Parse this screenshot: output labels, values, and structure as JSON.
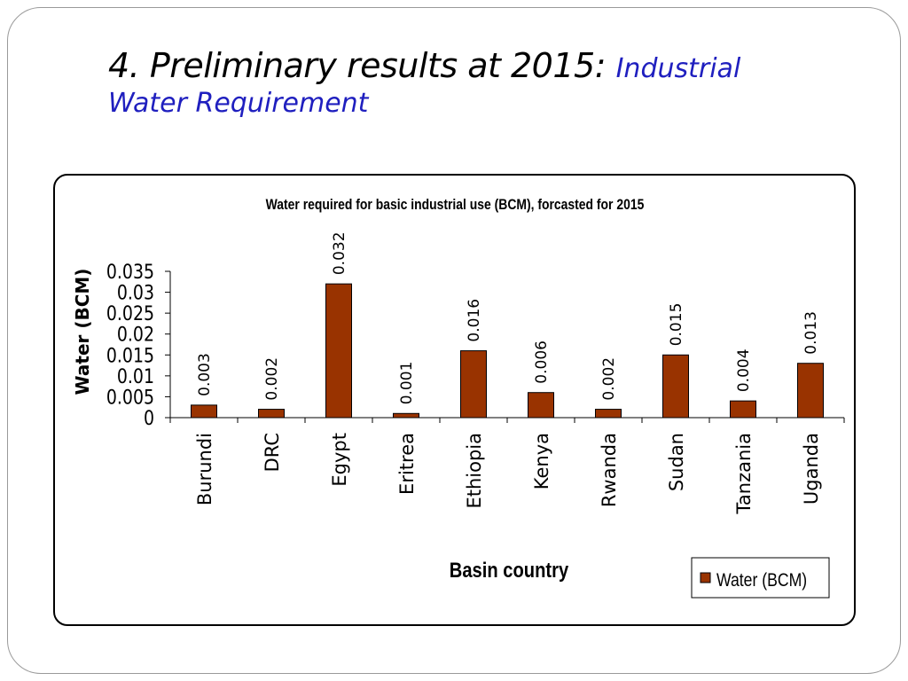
{
  "slide": {
    "title_main": "4. Preliminary results at 2015: ",
    "title_sub_line1": "Industrial",
    "title_sub_line2": "Water Requirement"
  },
  "colors": {
    "bar": "#993300",
    "title_accent": "#1f1fbf"
  },
  "chart_data": {
    "type": "bar",
    "title": "Water required for basic industrial use (BCM), forcasted for 2015",
    "xlabel": "Basin country",
    "ylabel": "Water (BCM)",
    "categories": [
      "Burundi",
      "DRC",
      "Egypt",
      "Eritrea",
      "Ethiopia",
      "Kenya",
      "Rwanda",
      "Sudan",
      "Tanzania",
      "Uganda"
    ],
    "series": [
      {
        "name": "Water (BCM)",
        "values": [
          0.003,
          0.002,
          0.032,
          0.001,
          0.016,
          0.006,
          0.002,
          0.015,
          0.004,
          0.013
        ],
        "labels": [
          "0.003",
          "0.002",
          "0.032",
          "0.001",
          "0.016",
          "0.006",
          "0.002",
          "0.015",
          "0.004",
          "0.013"
        ]
      }
    ],
    "ylim": [
      0,
      0.035
    ],
    "yticks": [
      0,
      0.005,
      0.01,
      0.015,
      0.02,
      0.025,
      0.03,
      0.035
    ],
    "ytick_labels": [
      "0",
      "0.005",
      "0.01",
      "0.015",
      "0.02",
      "0.025",
      "0.03",
      "0.035"
    ],
    "grid": false,
    "legend_position": "bottom-right"
  }
}
